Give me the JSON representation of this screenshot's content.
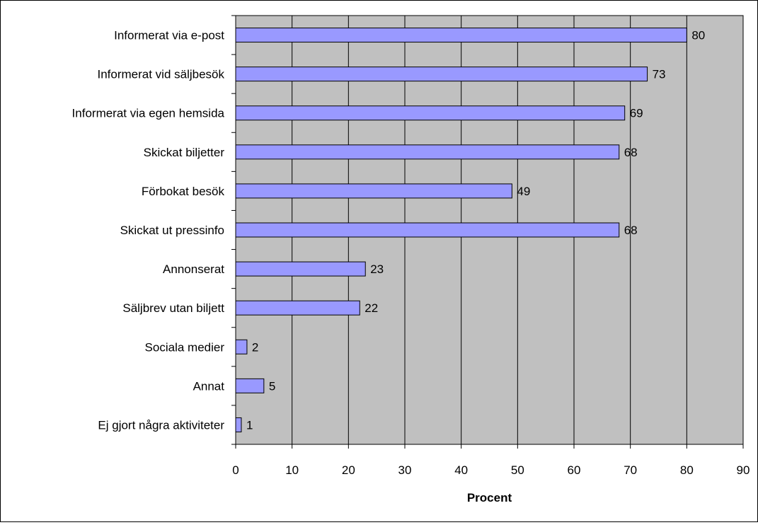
{
  "chart_data": {
    "type": "bar",
    "orientation": "horizontal",
    "title": "",
    "xlabel": "Procent",
    "ylabel": "",
    "categories": [
      "Informerat via e-post",
      "Informerat vid säljbesök",
      "Informerat via egen hemsida",
      "Skickat biljetter",
      "Förbokat besök",
      "Skickat ut pressinfo",
      "Annonserat",
      "Säljbrev utan biljett",
      "Sociala medier",
      "Annat",
      "Ej gjort några aktiviteter"
    ],
    "values": [
      80,
      73,
      69,
      68,
      49,
      68,
      23,
      22,
      2,
      5,
      1
    ],
    "value_labels": [
      "80",
      "73",
      "69",
      "68",
      "49",
      "68",
      "23",
      "22",
      "2",
      "5",
      "1"
    ],
    "xlim": [
      0,
      90
    ],
    "xticks": [
      "0",
      "10",
      "20",
      "30",
      "40",
      "50",
      "60",
      "70",
      "80",
      "90"
    ],
    "grid": "vertical",
    "legend": "none",
    "colors": {
      "plot_background": "#c0c0c0",
      "bar_fill": "#9999ff",
      "bar_stroke": "#000000",
      "gridline": "#000000"
    }
  }
}
